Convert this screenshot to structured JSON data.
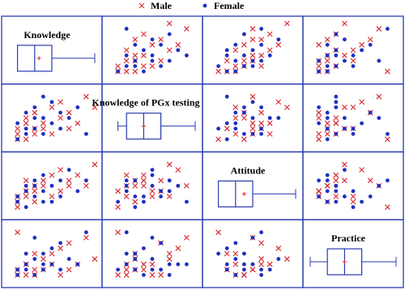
{
  "chart_data": {
    "type": "scatter-matrix",
    "variables": [
      "Knowledge",
      "Knowledge of PGx testing",
      "Attitude",
      "Practice"
    ],
    "lim": [
      0,
      10
    ],
    "series": [
      {
        "name": "Male",
        "color": "#d8262f",
        "marker": "x",
        "values": [
          [
            1,
            2,
            3,
            1
          ],
          [
            1,
            3,
            2,
            2
          ],
          [
            2,
            1,
            4,
            1
          ],
          [
            2,
            5,
            3,
            3
          ],
          [
            3,
            2,
            5,
            2
          ],
          [
            3,
            6,
            4,
            1
          ],
          [
            4,
            3,
            6,
            4
          ],
          [
            4,
            4,
            5,
            2
          ],
          [
            5,
            7,
            3,
            5
          ],
          [
            5,
            2,
            7,
            3
          ],
          [
            6,
            5,
            4,
            1
          ],
          [
            6,
            8,
            8,
            6
          ],
          [
            7,
            3,
            5,
            2
          ],
          [
            7,
            6,
            6,
            7
          ],
          [
            8,
            4,
            7,
            3
          ],
          [
            9,
            9,
            5,
            8
          ],
          [
            1,
            1,
            1,
            9
          ],
          [
            2,
            4,
            6,
            3
          ],
          [
            3,
            3,
            2,
            5
          ],
          [
            10,
            7,
            9,
            4
          ]
        ]
      },
      {
        "name": "Female",
        "color": "#1f2fc0",
        "marker": "dot",
        "values": [
          [
            1,
            1,
            2,
            2
          ],
          [
            1,
            4,
            3,
            1
          ],
          [
            2,
            2,
            5,
            3
          ],
          [
            2,
            6,
            4,
            2
          ],
          [
            3,
            3,
            3,
            4
          ],
          [
            3,
            7,
            6,
            1
          ],
          [
            4,
            2,
            4,
            5
          ],
          [
            4,
            5,
            7,
            2
          ],
          [
            5,
            4,
            2,
            6
          ],
          [
            5,
            8,
            5,
            3
          ],
          [
            6,
            3,
            6,
            2
          ],
          [
            6,
            6,
            3,
            7
          ],
          [
            7,
            5,
            8,
            4
          ],
          [
            8,
            7,
            4,
            3
          ],
          [
            9,
            2,
            6,
            9
          ],
          [
            2,
            3,
            1,
            5
          ],
          [
            3,
            5,
            5,
            8
          ],
          [
            4,
            9,
            2,
            3
          ]
        ]
      }
    ],
    "boxes": [
      {
        "min": 1,
        "q1": 1,
        "median": 3,
        "q3": 5,
        "max": 10,
        "mean": 3.5
      },
      {
        "min": 1,
        "q1": 2,
        "median": 4,
        "q3": 6,
        "max": 10,
        "mean": 4
      },
      {
        "min": 1,
        "q1": 1,
        "median": 3,
        "q3": 5,
        "max": 10,
        "mean": 4
      },
      {
        "min": 0,
        "q1": 2,
        "median": 4,
        "q3": 6,
        "max": 10,
        "mean": 4
      }
    ]
  }
}
